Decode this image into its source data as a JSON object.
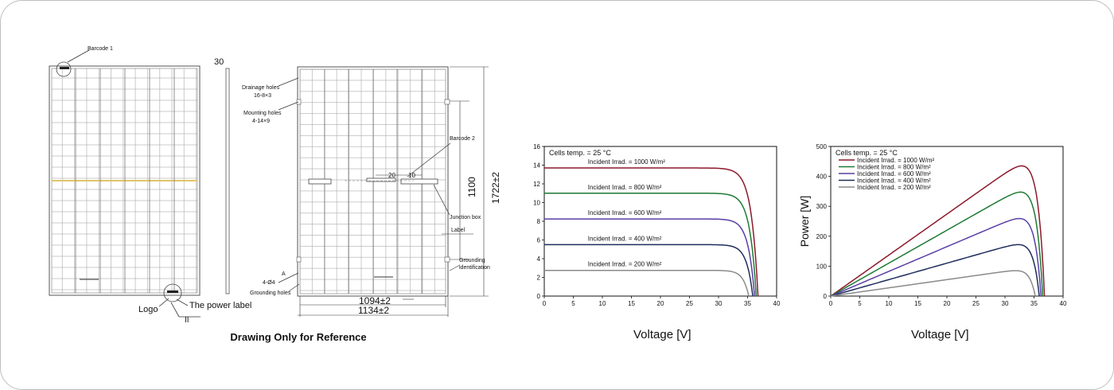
{
  "drawing": {
    "caption": "Drawing Only for Reference",
    "left_labels": {
      "barcode1": "Barcode 1",
      "thickness": "30",
      "logo": "Logo",
      "power_label": "The power label",
      "section": "II"
    },
    "right_labels": {
      "drainage": "Drainage holes",
      "drainage_spec": "16-8×3",
      "mounting": "Mounting holes",
      "mounting_spec": "4-14×9",
      "barcode2": "Barcode 2",
      "dim_20": "20",
      "dim_10": "10",
      "dim_1100": "1100",
      "dim_1722": "1722±2",
      "junction": "Junction box",
      "label": "Label",
      "grounding1": "Grounding",
      "grounding2": "identification",
      "a": "A",
      "hole_spec": "4-Ø4",
      "grounding_holes": "Grounding holes",
      "dim_1094": "1094±2",
      "dim_1134": "1134±2"
    }
  },
  "chart_data": [
    {
      "type": "line",
      "title": "Cells temp. = 25 °C",
      "xlabel": "Voltage [V]",
      "ylabel": "",
      "xlim": [
        0,
        40
      ],
      "ylim": [
        0,
        16
      ],
      "xticks": [
        "0",
        "5",
        "10",
        "15",
        "20",
        "25",
        "30",
        "35",
        "40"
      ],
      "yticks": [
        "0",
        "2",
        "4",
        "6",
        "8",
        "10",
        "12",
        "14",
        "16"
      ],
      "series": [
        {
          "name": "Incident Irrad. = 1000 W/m²",
          "color": "#8b1a2b",
          "isc": 13.7,
          "voc": 36.8,
          "knee": 27.5
        },
        {
          "name": "Incident Irrad. = 800 W/m²",
          "color": "#1e7a34",
          "isc": 11.0,
          "voc": 36.5,
          "knee": 27.5
        },
        {
          "name": "Incident Irrad. = 600 W/m²",
          "color": "#5a3fa5",
          "isc": 8.25,
          "voc": 36.2,
          "knee": 27.5
        },
        {
          "name": "Incident Irrad. = 400 W/m²",
          "color": "#1f2d5c",
          "isc": 5.5,
          "voc": 35.9,
          "knee": 27.5
        },
        {
          "name": "Incident Irrad. = 200 W/m²",
          "color": "#8a8a8a",
          "isc": 2.75,
          "voc": 35.2,
          "knee": 27.5
        }
      ]
    },
    {
      "type": "line",
      "title": "Cells temp. = 25 °C",
      "xlabel": "Voltage [V]",
      "ylabel": "Power [W]",
      "xlim": [
        0,
        40
      ],
      "ylim": [
        0,
        500
      ],
      "xticks": [
        "0",
        "5",
        "10",
        "15",
        "20",
        "25",
        "30",
        "35",
        "40"
      ],
      "yticks": [
        "0",
        "100",
        "200",
        "300",
        "400",
        "500"
      ],
      "series": [
        {
          "name": "Incident Irrad. = 1000 W/m²",
          "color": "#8b1a2b",
          "isc": 13.7,
          "voc": 36.8,
          "knee": 27.5
        },
        {
          "name": "Incident Irrad. = 800 W/m²",
          "color": "#1e7a34",
          "isc": 11.0,
          "voc": 36.5,
          "knee": 27.5
        },
        {
          "name": "Incident Irrad. = 600 W/m²",
          "color": "#5a3fa5",
          "isc": 8.25,
          "voc": 36.2,
          "knee": 27.5
        },
        {
          "name": "Incident Irrad. = 400 W/m²",
          "color": "#1f2d5c",
          "isc": 5.5,
          "voc": 35.9,
          "knee": 27.5
        },
        {
          "name": "Incident Irrad. = 200 W/m²",
          "color": "#8a8a8a",
          "isc": 2.75,
          "voc": 35.2,
          "knee": 27.5
        }
      ]
    }
  ]
}
